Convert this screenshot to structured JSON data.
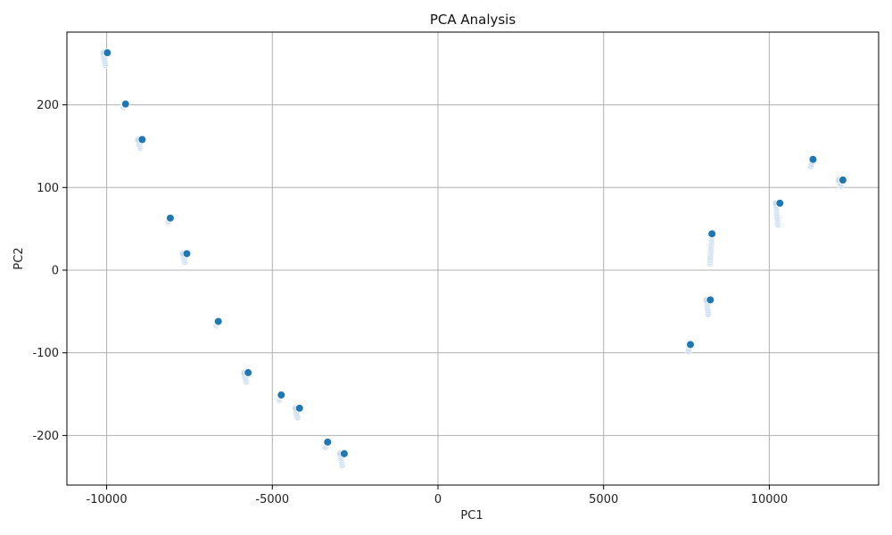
{
  "chart_data": {
    "type": "scatter",
    "title": "PCA Analysis",
    "xlabel": "PC1",
    "ylabel": "PC2",
    "xlim": [
      -11200,
      13300
    ],
    "ylim": [
      -260,
      288
    ],
    "xticks": [
      -10000,
      -5000,
      0,
      5000,
      10000
    ],
    "yticks": [
      -200,
      -100,
      0,
      100,
      200
    ],
    "grid": true,
    "colors": {
      "point": "#1f77b4",
      "point_faded": "#c6dbef",
      "grid": "#b0b0b0",
      "axis": "#000000"
    },
    "clusters": [
      {
        "x": -10000,
        "y_min": 248,
        "y_max": 263
      },
      {
        "x": -9450,
        "y_min": 197,
        "y_max": 201
      },
      {
        "x": -8950,
        "y_min": 148,
        "y_max": 158
      },
      {
        "x": -8100,
        "y_min": 58,
        "y_max": 63
      },
      {
        "x": -7600,
        "y_min": 10,
        "y_max": 20
      },
      {
        "x": -6650,
        "y_min": -67,
        "y_max": -62
      },
      {
        "x": -5750,
        "y_min": -135,
        "y_max": -124
      },
      {
        "x": -4750,
        "y_min": -157,
        "y_max": -151
      },
      {
        "x": -4200,
        "y_min": -178,
        "y_max": -167
      },
      {
        "x": -3350,
        "y_min": -214,
        "y_max": -208
      },
      {
        "x": -2850,
        "y_min": -236,
        "y_max": -222
      },
      {
        "x": 7600,
        "y_min": -98,
        "y_max": -90
      },
      {
        "x": 8200,
        "y_min": -53,
        "y_max": -36
      },
      {
        "x": 8250,
        "y_min": 8,
        "y_max": 44
      },
      {
        "x": 10300,
        "y_min": 55,
        "y_max": 81
      },
      {
        "x": 11300,
        "y_min": 126,
        "y_max": 134
      },
      {
        "x": 12200,
        "y_min": 102,
        "y_max": 109
      }
    ]
  }
}
